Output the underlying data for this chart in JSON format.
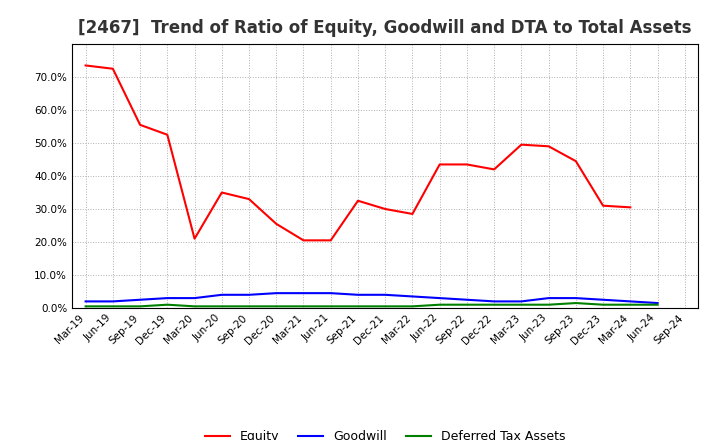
{
  "title": "[2467]  Trend of Ratio of Equity, Goodwill and DTA to Total Assets",
  "x_labels": [
    "Mar-19",
    "Jun-19",
    "Sep-19",
    "Dec-19",
    "Mar-20",
    "Jun-20",
    "Sep-20",
    "Dec-20",
    "Mar-21",
    "Jun-21",
    "Sep-21",
    "Dec-21",
    "Mar-22",
    "Jun-22",
    "Sep-22",
    "Dec-22",
    "Mar-23",
    "Jun-23",
    "Sep-23",
    "Dec-23",
    "Mar-24",
    "Jun-24",
    "Sep-24"
  ],
  "equity": [
    73.5,
    72.5,
    55.5,
    52.5,
    21.0,
    35.0,
    33.0,
    25.5,
    20.5,
    20.5,
    32.5,
    30.0,
    28.5,
    43.5,
    43.5,
    42.0,
    49.5,
    49.0,
    44.5,
    31.0,
    30.5,
    null,
    null
  ],
  "goodwill": [
    2.0,
    2.0,
    2.5,
    3.0,
    3.0,
    4.0,
    4.0,
    4.5,
    4.5,
    4.5,
    4.0,
    4.0,
    3.5,
    3.0,
    2.5,
    2.0,
    2.0,
    3.0,
    3.0,
    2.5,
    2.0,
    1.5,
    null
  ],
  "dta": [
    0.5,
    0.5,
    0.5,
    1.0,
    0.5,
    0.5,
    0.5,
    0.5,
    0.5,
    0.5,
    0.5,
    0.5,
    0.5,
    1.0,
    1.0,
    1.0,
    1.0,
    1.0,
    1.5,
    1.0,
    1.0,
    1.0,
    null
  ],
  "equity_color": "#ff0000",
  "goodwill_color": "#0000ff",
  "dta_color": "#008000",
  "background_color": "#ffffff",
  "plot_bg_color": "#ffffff",
  "grid_color": "#b0b0b0",
  "ylim": [
    0.0,
    80.0
  ],
  "yticks": [
    0.0,
    10.0,
    20.0,
    30.0,
    40.0,
    50.0,
    60.0,
    70.0
  ],
  "legend_labels": [
    "Equity",
    "Goodwill",
    "Deferred Tax Assets"
  ],
  "title_fontsize": 12,
  "tick_fontsize": 7.5,
  "legend_fontsize": 9
}
